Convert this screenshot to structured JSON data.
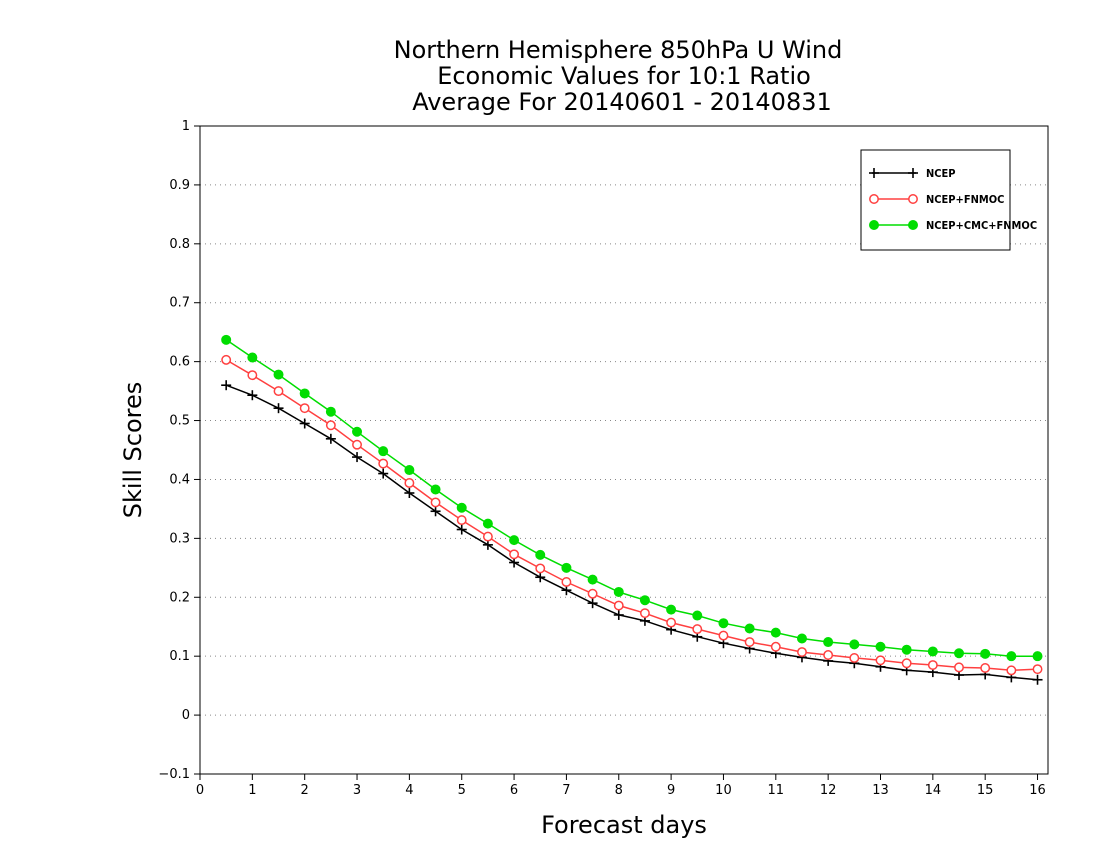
{
  "chart_data": {
    "type": "line",
    "title": [
      "Northern Hemisphere 850hPa U Wind",
      "Economic Values for 10:1 Ratio",
      "Average For 20140601 - 20140831"
    ],
    "xlabel": "Forecast days",
    "ylabel": "Skill Scores",
    "xlim": [
      0,
      16.2
    ],
    "ylim": [
      -0.1,
      1
    ],
    "xticks": [
      0,
      1,
      2,
      3,
      4,
      5,
      6,
      7,
      8,
      9,
      10,
      11,
      12,
      13,
      14,
      15,
      16
    ],
    "yticks": [
      -0.1,
      0,
      0.1,
      0.2,
      0.3,
      0.4,
      0.5,
      0.6,
      0.7,
      0.8,
      0.9,
      1
    ],
    "ytick_labels": [
      "−0.1",
      "0",
      "0.1",
      "0.2",
      "0.3",
      "0.4",
      "0.5",
      "0.6",
      "0.7",
      "0.8",
      "0.9",
      "1"
    ],
    "grid": "horizontal dotted",
    "legend_position": "top-right",
    "x": [
      0.5,
      1,
      1.5,
      2,
      2.5,
      3,
      3.5,
      4,
      4.5,
      5,
      5.5,
      6,
      6.5,
      7,
      7.5,
      8,
      8.5,
      9,
      9.5,
      10,
      10.5,
      11,
      11.5,
      12,
      12.5,
      13,
      13.5,
      14,
      14.5,
      15,
      15.5,
      16
    ],
    "series": [
      {
        "name": "NCEP",
        "color": "#000000",
        "marker": "plus",
        "values": [
          0.56,
          0.543,
          0.521,
          0.495,
          0.469,
          0.438,
          0.41,
          0.377,
          0.346,
          0.315,
          0.289,
          0.259,
          0.234,
          0.212,
          0.19,
          0.17,
          0.16,
          0.145,
          0.133,
          0.122,
          0.113,
          0.105,
          0.098,
          0.092,
          0.088,
          0.082,
          0.076,
          0.073,
          0.068,
          0.069,
          0.064,
          0.06
        ]
      },
      {
        "name": "NCEP+FNMOC",
        "color": "#ff4040",
        "marker": "open-circle",
        "values": [
          0.603,
          0.577,
          0.55,
          0.521,
          0.492,
          0.459,
          0.427,
          0.394,
          0.361,
          0.331,
          0.303,
          0.273,
          0.249,
          0.226,
          0.206,
          0.186,
          0.173,
          0.157,
          0.146,
          0.135,
          0.124,
          0.116,
          0.107,
          0.102,
          0.097,
          0.093,
          0.088,
          0.085,
          0.081,
          0.08,
          0.076,
          0.078
        ]
      },
      {
        "name": "NCEP+CMC+FNMOC",
        "color": "#00dd00",
        "marker": "filled-circle",
        "values": [
          0.637,
          0.607,
          0.578,
          0.546,
          0.515,
          0.481,
          0.448,
          0.416,
          0.383,
          0.352,
          0.325,
          0.297,
          0.272,
          0.25,
          0.23,
          0.209,
          0.195,
          0.179,
          0.169,
          0.156,
          0.147,
          0.14,
          0.13,
          0.124,
          0.12,
          0.116,
          0.111,
          0.108,
          0.105,
          0.104,
          0.1,
          0.1
        ]
      }
    ]
  }
}
